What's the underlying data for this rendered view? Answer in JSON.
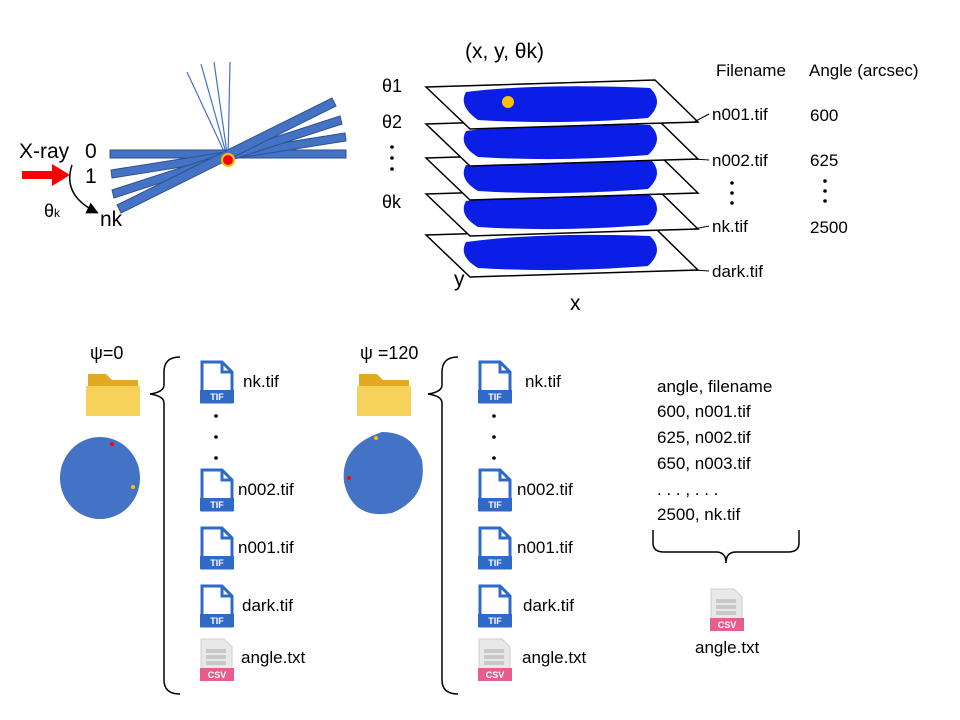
{
  "beam": {
    "xray_label": "X-ray",
    "label_0": "0",
    "label_1": "1",
    "label_nk": "nk",
    "theta_symbol": "θ",
    "theta_sub": "k"
  },
  "stack": {
    "title": "(x, y, θk)",
    "theta_labels": [
      "θ1",
      "θ2",
      "θk"
    ],
    "axis_x": "x",
    "axis_y": "y"
  },
  "table": {
    "col_filename": "Filename",
    "col_angle": "Angle (arcsec)",
    "filenames": [
      "n001.tif",
      "n002.tif",
      "nk.tif",
      "dark.tif"
    ],
    "angles": [
      "600",
      "625",
      "2500"
    ]
  },
  "folders": [
    {
      "psi_label": "ψ=0",
      "files": [
        "nk.tif",
        "n002.tif",
        "n001.tif",
        "dark.tif",
        "angle.txt"
      ]
    },
    {
      "psi_label": "ψ =120",
      "files": [
        "nk.tif",
        "n002.tif",
        "n001.tif",
        "dark.tif",
        "angle.txt"
      ]
    }
  ],
  "icons": {
    "tif_badge": "TIF",
    "csv_badge": "CSV"
  },
  "angle_file": {
    "lines": [
      "angle,  filename",
      "600, n001.tif",
      "625, n002.tif",
      "650, n003.tif",
      ". . . ,    . . .",
      "2500, nk.tif"
    ],
    "file_label": "angle.txt"
  },
  "colors": {
    "beam_red": "#ff0000",
    "crystal_blue": "#4472c4",
    "scan_blue": "#0a1ee6",
    "spot_yellow": "#ffc000",
    "folder_yellow": "#f5c542",
    "tif_blue": "#2f6ac9",
    "csv_pink": "#e85d8d"
  }
}
